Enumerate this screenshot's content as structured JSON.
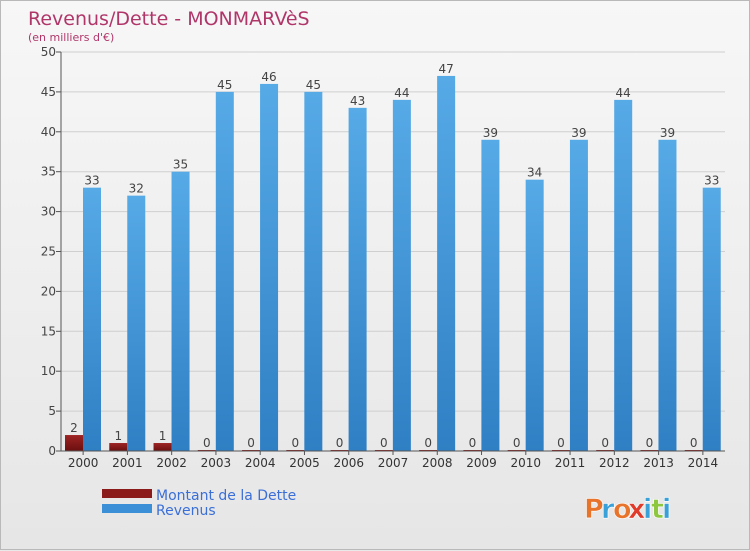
{
  "chart_data": {
    "type": "bar",
    "title": "Revenus/Dette - MONMARVèS",
    "subtitle": "(en milliers d'€)",
    "categories": [
      "2000",
      "2001",
      "2002",
      "2003",
      "2004",
      "2005",
      "2006",
      "2007",
      "2008",
      "2009",
      "2010",
      "2011",
      "2012",
      "2013",
      "2014"
    ],
    "series": [
      {
        "name": "Montant de la Dette",
        "color": "#8b1a1a",
        "values": [
          2,
          1,
          1,
          0,
          0,
          0,
          0,
          0,
          0,
          0,
          0,
          0,
          0,
          0,
          0
        ]
      },
      {
        "name": "Revenus",
        "color": "#3a8fd6",
        "values": [
          33,
          32,
          35,
          45,
          46,
          45,
          43,
          44,
          47,
          39,
          34,
          39,
          44,
          39,
          33
        ]
      }
    ],
    "ylim": [
      0,
      50
    ],
    "yticks": [
      0,
      5,
      10,
      15,
      20,
      25,
      30,
      35,
      40,
      45,
      50
    ],
    "grid": true,
    "legend_position": "bottom-left"
  },
  "branding": {
    "logo_text": "Proxiti",
    "logo_colors": [
      "#e8732a",
      "#3aa0d8",
      "#e8732a",
      "#e03a2a",
      "#3aa0d8",
      "#8dc63f",
      "#3aa0d8"
    ]
  }
}
